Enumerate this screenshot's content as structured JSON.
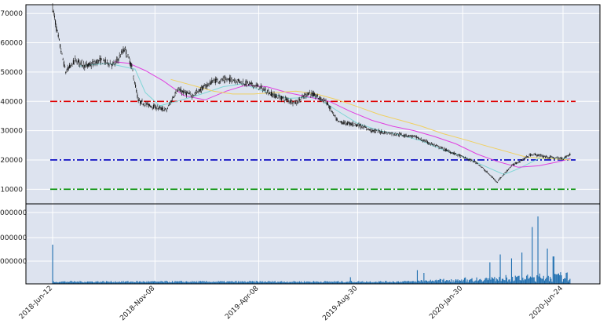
{
  "chart_data": [
    {
      "type": "candlestick",
      "ylim": [
        5000,
        73000
      ],
      "yticks": [
        "10000",
        "20000",
        "30000",
        "40000",
        "50000",
        "60000",
        "70000"
      ],
      "x_tick_labels": [
        "2018-Jun-12",
        "2018-Nov-08",
        "2019-Apr-08",
        "2019-Aug-30",
        "2020-Jan-30",
        "2020-Jun-24"
      ],
      "grid": true,
      "price_path": [
        {
          "date": "2018-Jun-12",
          "close": 72000
        },
        {
          "date": "2018-Jun-20",
          "close": 62000
        },
        {
          "date": "2018-Jul-01",
          "close": 50000
        },
        {
          "date": "2018-Jul-15",
          "close": 54000
        },
        {
          "date": "2018-Aug-01",
          "close": 52000
        },
        {
          "date": "2018-Aug-20",
          "close": 54000
        },
        {
          "date": "2018-Sep-10",
          "close": 52500
        },
        {
          "date": "2018-Sep-25",
          "close": 58000
        },
        {
          "date": "2018-Oct-05",
          "close": 52000
        },
        {
          "date": "2018-Oct-15",
          "close": 40000
        },
        {
          "date": "2018-Nov-08",
          "close": 38000
        },
        {
          "date": "2018-Nov-25",
          "close": 37000
        },
        {
          "date": "2018-Dec-10",
          "close": 44000
        },
        {
          "date": "2019-Jan-01",
          "close": 42000
        },
        {
          "date": "2019-Feb-01",
          "close": 47000
        },
        {
          "date": "2019-Mar-01",
          "close": 47500
        },
        {
          "date": "2019-Apr-08",
          "close": 45000
        },
        {
          "date": "2019-May-01",
          "close": 42000
        },
        {
          "date": "2019-Jun-01",
          "close": 39500
        },
        {
          "date": "2019-Jun-20",
          "close": 43000
        },
        {
          "date": "2019-Jul-15",
          "close": 40000
        },
        {
          "date": "2019-Aug-01",
          "close": 33000
        },
        {
          "date": "2019-Aug-30",
          "close": 32000
        },
        {
          "date": "2019-Sep-20",
          "close": 30000
        },
        {
          "date": "2019-Oct-20",
          "close": 29000
        },
        {
          "date": "2019-Nov-20",
          "close": 28000
        },
        {
          "date": "2019-Dec-20",
          "close": 25000
        },
        {
          "date": "2020-Jan-30",
          "close": 21000
        },
        {
          "date": "2020-Feb-20",
          "close": 19000
        },
        {
          "date": "2020-Mar-20",
          "close": 12500
        },
        {
          "date": "2020-Apr-10",
          "close": 18000
        },
        {
          "date": "2020-May-10",
          "close": 22000
        },
        {
          "date": "2020-Jun-01",
          "close": 21000
        },
        {
          "date": "2020-Jun-24",
          "close": 20500
        },
        {
          "date": "2020-Jul-05",
          "close": 22000
        }
      ],
      "moving_averages": [
        {
          "color": "#7fd6d6",
          "points": [
            {
              "date": "2018-Jul-20",
              "value": 52000
            },
            {
              "date": "2018-Sep-01",
              "value": 53000
            },
            {
              "date": "2018-Oct-10",
              "value": 51000
            },
            {
              "date": "2018-Oct-25",
              "value": 43000
            },
            {
              "date": "2018-Nov-15",
              "value": 38500
            },
            {
              "date": "2018-Dec-10",
              "value": 40000
            },
            {
              "date": "2019-Jan-15",
              "value": 42500
            },
            {
              "date": "2019-Feb-15",
              "value": 45000
            },
            {
              "date": "2019-Mar-15",
              "value": 46000
            },
            {
              "date": "2019-Apr-15",
              "value": 43500
            },
            {
              "date": "2019-May-20",
              "value": 41000
            },
            {
              "date": "2019-Jun-30",
              "value": 41500
            },
            {
              "date": "2019-Jul-30",
              "value": 37000
            },
            {
              "date": "2019-Aug-30",
              "value": 32500
            },
            {
              "date": "2019-Oct-01",
              "value": 30000
            },
            {
              "date": "2019-Nov-01",
              "value": 28500
            },
            {
              "date": "2019-Dec-01",
              "value": 26500
            },
            {
              "date": "2020-Jan-01",
              "value": 23500
            },
            {
              "date": "2020-Feb-01",
              "value": 21000
            },
            {
              "date": "2020-Mar-01",
              "value": 18000
            },
            {
              "date": "2020-Mar-30",
              "value": 15000
            },
            {
              "date": "2020-Apr-20",
              "value": 17000
            },
            {
              "date": "2020-May-20",
              "value": 20500
            },
            {
              "date": "2020-Jul-05",
              "value": 20500
            }
          ]
        },
        {
          "color": "#e040e0",
          "points": [
            {
              "date": "2018-Sep-10",
              "value": 53500
            },
            {
              "date": "2018-Oct-01",
              "value": 53000
            },
            {
              "date": "2018-Oct-25",
              "value": 50500
            },
            {
              "date": "2018-Nov-20",
              "value": 47000
            },
            {
              "date": "2018-Dec-20",
              "value": 42000
            },
            {
              "date": "2019-Jan-20",
              "value": 40500
            },
            {
              "date": "2019-Feb-20",
              "value": 43500
            },
            {
              "date": "2019-Mar-20",
              "value": 45500
            },
            {
              "date": "2019-Apr-20",
              "value": 45000
            },
            {
              "date": "2019-May-20",
              "value": 43000
            },
            {
              "date": "2019-Jun-20",
              "value": 41500
            },
            {
              "date": "2019-Jul-20",
              "value": 40000
            },
            {
              "date": "2019-Aug-20",
              "value": 36500
            },
            {
              "date": "2019-Sep-20",
              "value": 33500
            },
            {
              "date": "2019-Oct-20",
              "value": 31500
            },
            {
              "date": "2019-Nov-20",
              "value": 30000
            },
            {
              "date": "2019-Dec-20",
              "value": 28000
            },
            {
              "date": "2020-Jan-20",
              "value": 25500
            },
            {
              "date": "2020-Feb-20",
              "value": 22000
            },
            {
              "date": "2020-Mar-20",
              "value": 19500
            },
            {
              "date": "2020-Apr-20",
              "value": 17500
            },
            {
              "date": "2020-May-20",
              "value": 18000
            },
            {
              "date": "2020-Jun-20",
              "value": 19500
            },
            {
              "date": "2020-Jul-05",
              "value": 20500
            }
          ]
        },
        {
          "color": "#f0d060",
          "points": [
            {
              "date": "2018-Dec-01",
              "value": 47500
            },
            {
              "date": "2019-Jan-01",
              "value": 45500
            },
            {
              "date": "2019-Feb-01",
              "value": 43500
            },
            {
              "date": "2019-Mar-01",
              "value": 42500
            },
            {
              "date": "2019-Apr-01",
              "value": 42500
            },
            {
              "date": "2019-May-01",
              "value": 43000
            },
            {
              "date": "2019-Jun-01",
              "value": 43500
            },
            {
              "date": "2019-Jul-01",
              "value": 42500
            },
            {
              "date": "2019-Aug-01",
              "value": 40500
            },
            {
              "date": "2019-Sep-01",
              "value": 38000
            },
            {
              "date": "2019-Oct-01",
              "value": 35500
            },
            {
              "date": "2019-Nov-01",
              "value": 33500
            },
            {
              "date": "2019-Dec-01",
              "value": 31500
            },
            {
              "date": "2020-Jan-01",
              "value": 29000
            },
            {
              "date": "2020-Feb-01",
              "value": 27000
            },
            {
              "date": "2020-Mar-01",
              "value": 25000
            },
            {
              "date": "2020-Apr-01",
              "value": 23000
            },
            {
              "date": "2020-May-01",
              "value": 21000
            },
            {
              "date": "2020-Jun-01",
              "value": 20500
            },
            {
              "date": "2020-Jul-05",
              "value": 20000
            }
          ]
        }
      ],
      "horizontal_lines": [
        {
          "value": 40000,
          "color": "#e00000",
          "style": "dash-dot"
        },
        {
          "value": 20000,
          "color": "#0000c0",
          "style": "dash-dot"
        },
        {
          "value": 10000,
          "color": "#009000",
          "style": "dash-dot"
        }
      ]
    },
    {
      "type": "bar",
      "role": "volume",
      "color": "#1f6fb0",
      "yticks_partial": [
        "000000",
        "000000",
        "000000"
      ],
      "volume_spikes": [
        {
          "date": "2018-Jun-12",
          "value": 1.0
        },
        {
          "date": "2019-Aug-20",
          "value": 0.17
        },
        {
          "date": "2019-Nov-25",
          "value": 0.35
        },
        {
          "date": "2019-Dec-05",
          "value": 0.28
        },
        {
          "date": "2020-Mar-10",
          "value": 0.55
        },
        {
          "date": "2020-Mar-25",
          "value": 0.75
        },
        {
          "date": "2020-Apr-10",
          "value": 0.65
        },
        {
          "date": "2020-Apr-25",
          "value": 0.8
        },
        {
          "date": "2020-May-10",
          "value": 1.45
        },
        {
          "date": "2020-May-18",
          "value": 1.72
        },
        {
          "date": "2020-Jun-01",
          "value": 0.9
        },
        {
          "date": "2020-Jun-10",
          "value": 0.7
        },
        {
          "date": "2020-Jul-05",
          "value": 0.33
        }
      ]
    }
  ]
}
